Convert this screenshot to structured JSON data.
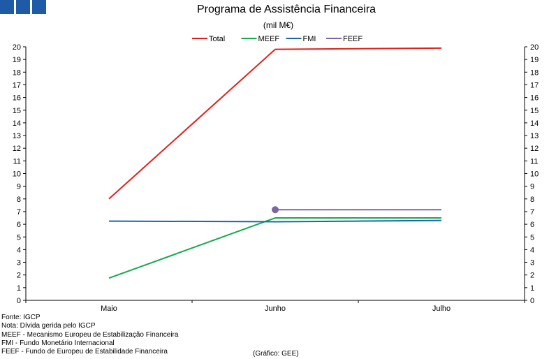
{
  "header": {
    "logo_blocks": 3,
    "logo_color": "#1f5aa6"
  },
  "chart_data": {
    "type": "line",
    "title": "Programa de Assistência Financeira",
    "subtitle": "(mil M€)",
    "categories": [
      "Maio",
      "Junho",
      "Julho"
    ],
    "ylim": [
      0,
      20
    ],
    "yticks_step": 1,
    "secondary_y_axis": true,
    "grid": false,
    "legend_position": "top",
    "series": [
      {
        "name": "Total",
        "color": "#e0201b",
        "values": [
          8.0,
          19.8,
          19.9
        ]
      },
      {
        "name": "MEEF",
        "color": "#18a94f",
        "values": [
          1.75,
          6.5,
          6.5
        ]
      },
      {
        "name": "FMI",
        "color": "#1a66b1",
        "values": [
          6.25,
          6.2,
          6.3
        ]
      },
      {
        "name": "FEEF",
        "color": "#8064a2",
        "values": [
          null,
          7.15,
          7.15
        ]
      }
    ]
  },
  "notes": [
    "Fonte: IGCP",
    "Nota: Dívida gerida pelo IGCP",
    "MEEF - Mecanismo Europeu de Estabilização Financeira",
    "FMI - Fundo Monetário Internacional",
    "FEEF - Fundo de Europeu de Estabilidade Financeira"
  ],
  "credit": "(Gráfico: GEE)"
}
